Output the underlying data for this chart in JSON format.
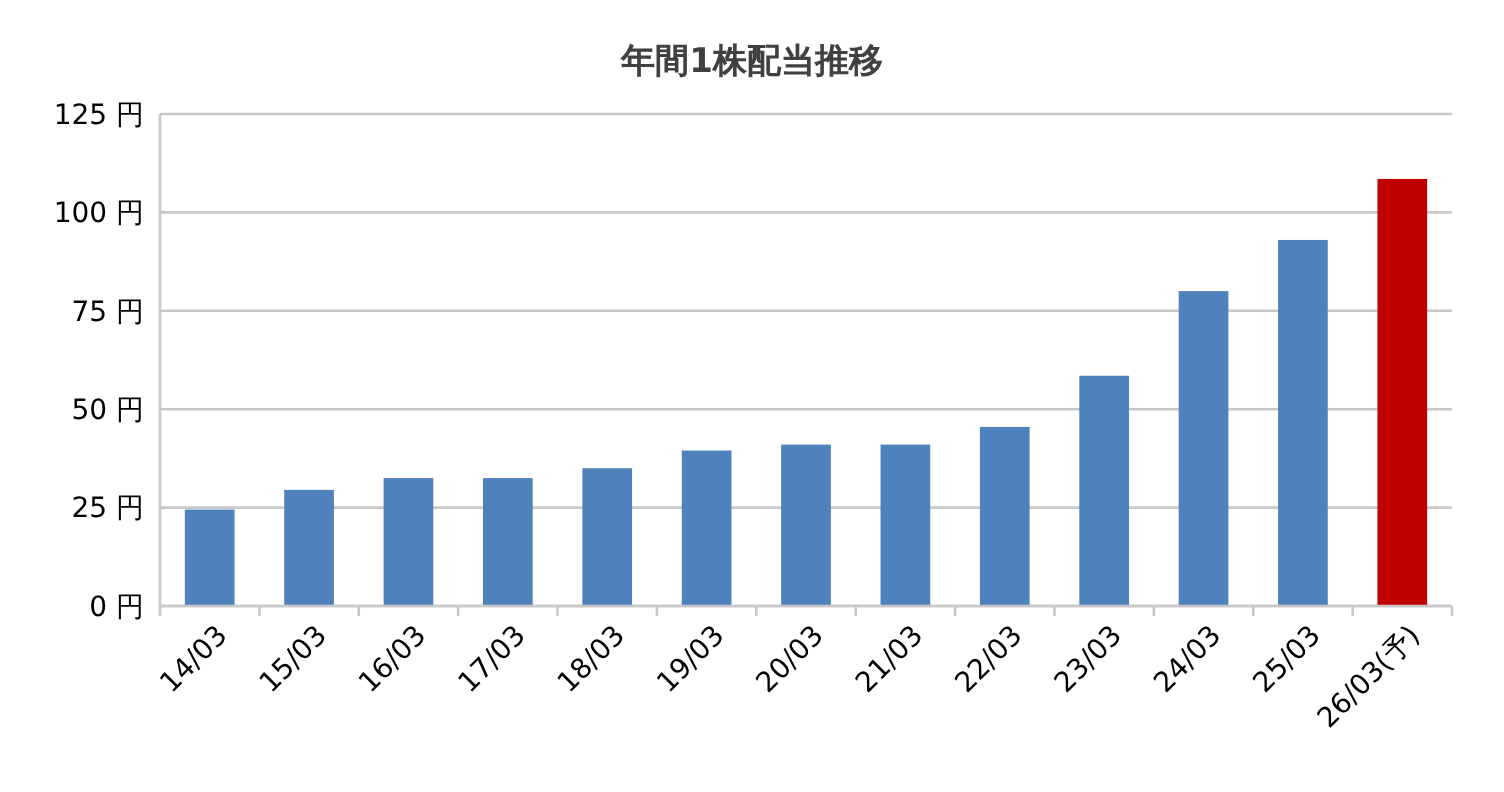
{
  "chart_data": {
    "type": "bar",
    "title": "年間1株配当推移",
    "categories": [
      "14/03",
      "15/03",
      "16/03",
      "17/03",
      "18/03",
      "19/03",
      "20/03",
      "21/03",
      "22/03",
      "23/03",
      "24/03",
      "25/03",
      "26/03(予)"
    ],
    "values": [
      24.5,
      29.5,
      32.5,
      32.5,
      35,
      39.5,
      41,
      41,
      45.5,
      58.5,
      80,
      93,
      108.5
    ],
    "colors": [
      "#4f81bd",
      "#4f81bd",
      "#4f81bd",
      "#4f81bd",
      "#4f81bd",
      "#4f81bd",
      "#4f81bd",
      "#4f81bd",
      "#4f81bd",
      "#4f81bd",
      "#4f81bd",
      "#4f81bd",
      "#c00000"
    ],
    "ylim": [
      0,
      125
    ],
    "yticks": [
      {
        "value": 0,
        "label": "0 円"
      },
      {
        "value": 25,
        "label": "25 円"
      },
      {
        "value": 50,
        "label": "50 円"
      },
      {
        "value": 75,
        "label": "75 円"
      },
      {
        "value": 100,
        "label": "100 円"
      },
      {
        "value": 125,
        "label": "125 円"
      }
    ],
    "grid": "y"
  }
}
